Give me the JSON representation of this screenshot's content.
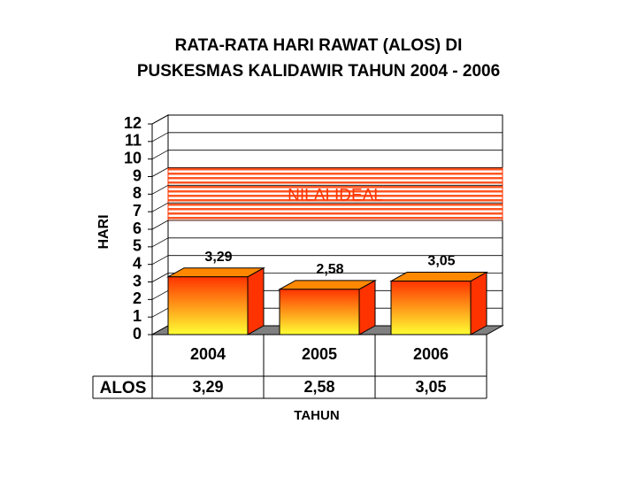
{
  "chart_data": {
    "type": "bar",
    "title": [
      "RATA-RATA HARI RAWAT (ALOS) DI",
      "PUSKESMAS KALIDAWIR TAHUN 2004 - 2006"
    ],
    "y_label": "HARI",
    "x_label": "TAHUN",
    "categories": [
      "2004",
      "2005",
      "2006"
    ],
    "series": [
      {
        "name": "ALOS",
        "color": "#ff3300",
        "values": [
          3.29,
          2.58,
          3.05
        ],
        "value_labels": [
          "3,29",
          "2,58",
          "3,05"
        ]
      }
    ],
    "ylim": [
      0,
      12
    ],
    "yticks": [
      0,
      1,
      2,
      3,
      4,
      5,
      6,
      7,
      8,
      9,
      10,
      11,
      12
    ],
    "grid": true,
    "annotation": {
      "text": "NILAI IDEAL",
      "range": [
        6,
        9
      ],
      "color": "#ff3300"
    }
  }
}
